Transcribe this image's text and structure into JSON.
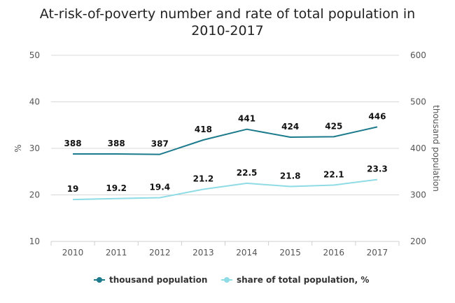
{
  "chart_data": {
    "type": "line",
    "title_lines": [
      "At-risk-of-poverty number and rate of total population in",
      "2010-2017"
    ],
    "categories": [
      "2010",
      "2011",
      "2012",
      "2013",
      "2014",
      "2015",
      "2016",
      "2017"
    ],
    "y_left": {
      "label": "%",
      "min": 10,
      "max": 50,
      "ticks": [
        10,
        20,
        30,
        40,
        50
      ]
    },
    "y_right": {
      "label": "thousand population",
      "min": 200,
      "max": 600,
      "ticks": [
        200,
        300,
        400,
        500,
        600
      ]
    },
    "grid": true,
    "legend_position": "bottom",
    "series": [
      {
        "name": "thousand population",
        "axis": "right",
        "color": "#1b7a8c",
        "values": [
          388,
          388,
          387,
          418,
          441,
          424,
          425,
          446
        ]
      },
      {
        "name": "share of total population, %",
        "axis": "left",
        "color": "#8fdbe6",
        "values": [
          19,
          19.2,
          19.4,
          21.2,
          22.5,
          21.8,
          22.1,
          23.3
        ]
      }
    ]
  }
}
